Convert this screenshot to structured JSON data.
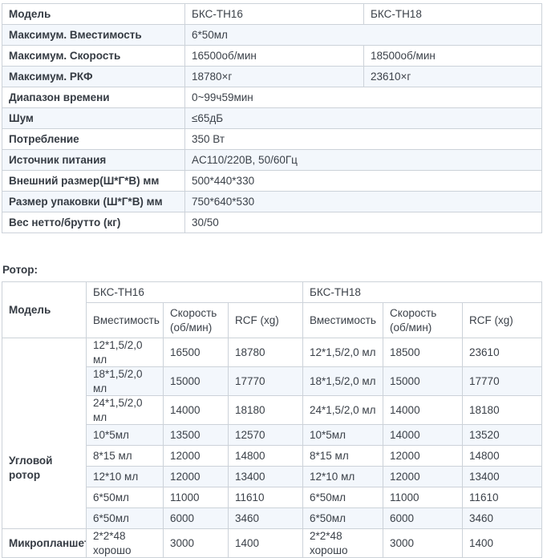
{
  "colors": {
    "stripe": "#f3f7fc",
    "border": "#ccd2d9",
    "text": "#3b4149"
  },
  "specs_table": {
    "rows": [
      {
        "label": "Модель",
        "span": false,
        "values": [
          "БКС-ТН16",
          "БКС-ТН18"
        ]
      },
      {
        "label": "Максимум. Вместимость",
        "span": true,
        "values": [
          "6*50мл"
        ]
      },
      {
        "label": "Максимум. Скорость",
        "span": false,
        "values": [
          "16500об/мин",
          "18500об/мин"
        ]
      },
      {
        "label": "Максимум. РКФ",
        "span": false,
        "values": [
          "18780×г",
          "23610×г"
        ]
      },
      {
        "label": "Диапазон времени",
        "span": true,
        "values": [
          "0~99ч59мин"
        ]
      },
      {
        "label": "Шум",
        "span": true,
        "values": [
          "≤65дБ"
        ]
      },
      {
        "label": "Потребление",
        "span": true,
        "values": [
          "350 Вт"
        ]
      },
      {
        "label": "Источник питания",
        "span": true,
        "values": [
          "AC110/220В, 50/60Гц"
        ]
      },
      {
        "label": "Внешний размер(Ш*Г*В) мм",
        "span": true,
        "values": [
          "500*440*330"
        ]
      },
      {
        "label": "Размер упаковки (Ш*Г*В) мм",
        "span": true,
        "values": [
          "750*640*530"
        ]
      },
      {
        "label": "Вес нетто/брутто (кг)",
        "span": true,
        "values": [
          "30/50"
        ]
      }
    ]
  },
  "rotor_section": {
    "heading": "Ротор:",
    "table": {
      "model_header": "Модель",
      "groups": [
        "БКС-ТН16",
        "БКС-ТН18"
      ],
      "sub_headers": [
        "Вместимость",
        "Скорость (об/мин)",
        "RCF (xg)"
      ],
      "row_groups": [
        {
          "label": "Угловой ротор",
          "rows": [
            [
              "12*1,5/2,0 мл",
              "16500",
              "18780",
              "12*1,5/2,0 мл",
              "18500",
              "23610"
            ],
            [
              "18*1,5/2,0 мл",
              "15000",
              "17770",
              "18*1,5/2,0 мл",
              "15000",
              "17770"
            ],
            [
              "24*1,5/2,0 мл",
              "14000",
              "18180",
              "24*1,5/2,0 мл",
              "14000",
              "18180"
            ],
            [
              "10*5мл",
              "13500",
              "12570",
              "10*5мл",
              "14000",
              "13520"
            ],
            [
              "8*15 мл",
              "12000",
              "14800",
              "8*15 мл",
              "12000",
              "14800"
            ],
            [
              "12*10 мл",
              "12000",
              "13400",
              "12*10 мл",
              "12000",
              "13400"
            ],
            [
              "6*50мл",
              "11000",
              "11610",
              "6*50мл",
              "11000",
              "11610"
            ],
            [
              "6*50мл",
              "6000",
              "3460",
              "6*50мл",
              "6000",
              "3460"
            ]
          ]
        },
        {
          "label": "Микропланшет",
          "rows": [
            [
              "2*2*48 хорошо",
              "3000",
              "1400",
              "2*2*48 хорошо",
              "3000",
              "1400"
            ]
          ]
        }
      ]
    }
  }
}
